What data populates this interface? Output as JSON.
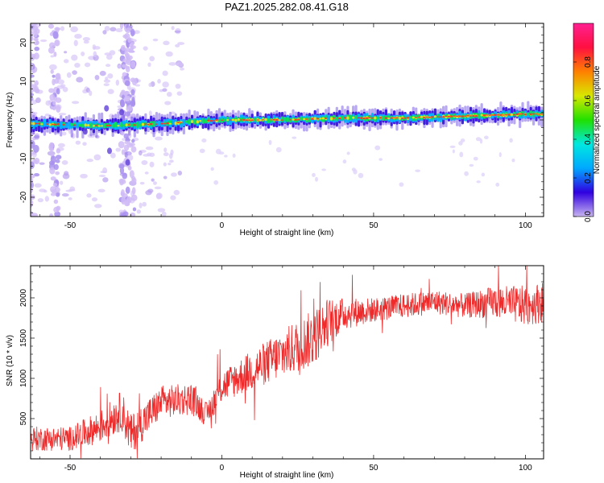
{
  "figure": {
    "title": "PAZ1.2025.282.08.41.G18"
  },
  "chart_data": [
    {
      "type": "heatmap",
      "xlabel": "Height of straight line (km)",
      "ylabel": "Frequency (Hz)",
      "xlim": [
        -63,
        106
      ],
      "ylim": [
        -25,
        25
      ],
      "xticks": [
        -50,
        0,
        50,
        100
      ],
      "yticks": [
        -20,
        -10,
        0,
        10,
        20
      ],
      "colorbar": {
        "label": "Normalized spectral amplitude",
        "range": [
          0,
          1
        ],
        "ticks": [
          "0.0",
          "0.2",
          "0.4",
          "0.6",
          "0.8"
        ],
        "colors": [
          "#c8b4f0",
          "#3000e0",
          "#00a8ff",
          "#00e8e0",
          "#20e000",
          "#d8e800",
          "#ff8000",
          "#ff1040",
          "#ff2090"
        ]
      },
      "ridge": {
        "description_points_x": [
          -60,
          -40,
          -20,
          0,
          20,
          40,
          60,
          80,
          100,
          105
        ],
        "center_frequency": [
          -1,
          -1.5,
          -1,
          0,
          0,
          0.5,
          0.5,
          1,
          1.5,
          1.5
        ]
      },
      "noise_columns_x": [
        -62,
        -55,
        -32,
        -30
      ]
    },
    {
      "type": "line",
      "xlabel": "Height of straight line (km)",
      "ylabel": "SNR (10 * v/v)",
      "xlim": [
        -63,
        106
      ],
      "ylim": [
        0,
        2400
      ],
      "xticks": [
        -50,
        0,
        50,
        100
      ],
      "yticks": [
        500,
        1000,
        1500,
        2000
      ],
      "series": [
        {
          "color": "#ee2a2a",
          "trend_x": [
            -63,
            -50,
            -40,
            -33,
            -30,
            -20,
            -10,
            -5,
            0,
            10,
            20,
            30,
            35,
            40,
            50,
            60,
            70,
            80,
            90,
            100,
            106
          ],
          "trend_y": [
            250,
            250,
            400,
            600,
            300,
            700,
            750,
            550,
            900,
            1100,
            1300,
            1500,
            1700,
            1800,
            1850,
            1900,
            1950,
            1900,
            1950,
            1900,
            1950
          ],
          "noise_amplitude": [
            150,
            150,
            200,
            250,
            250,
            200,
            200,
            150,
            200,
            250,
            300,
            350,
            300,
            200,
            150,
            150,
            150,
            150,
            200,
            250,
            250
          ]
        }
      ]
    }
  ]
}
